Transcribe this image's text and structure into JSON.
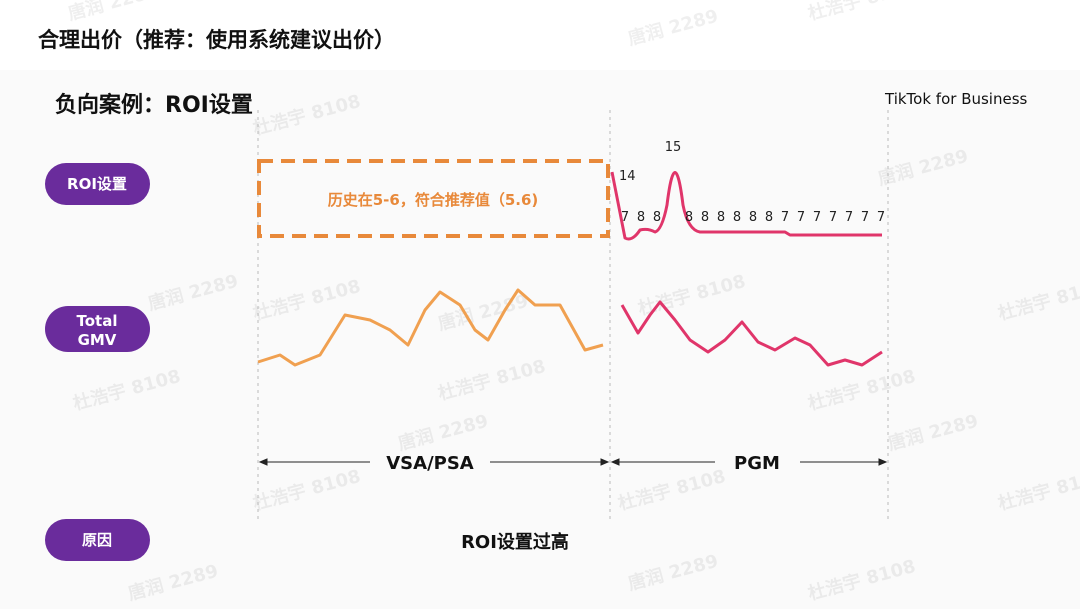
{
  "header": {
    "title": "合理出价（推荐：使用系统建议出价）"
  },
  "slide": {
    "subtitle": "负向案例：ROI设置",
    "brand": "TikTok for Business"
  },
  "rows": {
    "roi": "ROI设置",
    "gmv": [
      "Total",
      "GMV"
    ],
    "reason": "原因"
  },
  "callout": "历史在5-6，符合推荐值（5.6)",
  "roi_labels": [
    14,
    7,
    8,
    8,
    15,
    8,
    8,
    8,
    8,
    8,
    8,
    7,
    7,
    7,
    7,
    7,
    7,
    7
  ],
  "phases": [
    "VSA/PSA",
    "PGM"
  ],
  "reason_text": "ROI设置过高",
  "watermarks": [
    "杜浩宇 8108",
    "唐润 2289"
  ]
}
